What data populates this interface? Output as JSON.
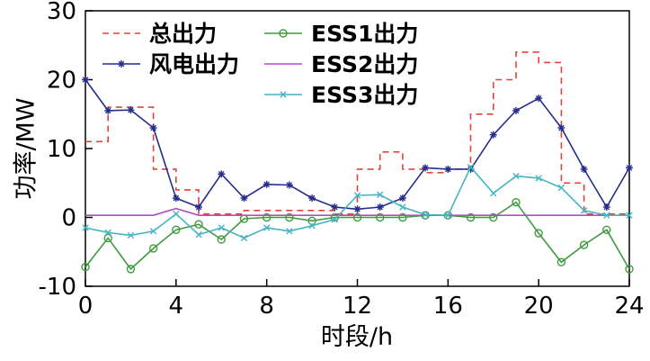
{
  "figure": {
    "background": "#ffffff"
  },
  "chart_data": {
    "type": "line",
    "title": "",
    "xlabel": "时段/h",
    "ylabel": "功率/MW",
    "xlim": [
      0,
      24
    ],
    "ylim": [
      -10,
      30
    ],
    "xticks": [
      0,
      4,
      8,
      12,
      16,
      20,
      24
    ],
    "yticks": [
      30,
      20,
      10,
      0,
      -10
    ],
    "grid": false,
    "legend_position": "inside-top-two-columns",
    "x": [
      0,
      1,
      2,
      3,
      4,
      5,
      6,
      7,
      8,
      9,
      10,
      11,
      12,
      13,
      14,
      15,
      16,
      17,
      18,
      19,
      20,
      21,
      22,
      23,
      24
    ],
    "series": [
      {
        "key": "total-output",
        "name": "总出力",
        "color": "#e0443a",
        "line": "dashed",
        "marker": "none",
        "step": true,
        "values": [
          11,
          16,
          16,
          7,
          4,
          0.5,
          0.5,
          1,
          1,
          1,
          1,
          0.5,
          7,
          9.5,
          7,
          6.5,
          7,
          15,
          20,
          24,
          22.5,
          5,
          0.5,
          0.5,
          0.5
        ]
      },
      {
        "key": "wind-output",
        "name": "风电出力",
        "color": "#272d8c",
        "line": "solid",
        "marker": "asterisk",
        "step": false,
        "values": [
          20,
          15.5,
          15.6,
          13,
          2.8,
          1.5,
          6.3,
          2.8,
          4.8,
          4.7,
          2.8,
          1.5,
          1.2,
          1.5,
          2.8,
          7.2,
          7,
          7,
          12,
          15.5,
          17.3,
          13,
          7,
          1.5,
          7.2
        ]
      },
      {
        "key": "ess1-output",
        "name": "ESS1出力",
        "color": "#3f9b3f",
        "line": "solid",
        "marker": "circle",
        "step": false,
        "values": [
          -7.2,
          -3,
          -7.5,
          -4.5,
          -1.8,
          -1,
          -3.2,
          -0.2,
          0,
          0,
          -0.5,
          0,
          0,
          0,
          0,
          0.3,
          0.3,
          0,
          0,
          2.2,
          -2.3,
          -6.5,
          -4,
          -1.8,
          -7.5
        ]
      },
      {
        "key": "ess2-output",
        "name": "ESS2出力",
        "color": "#b44bc8",
        "line": "solid",
        "marker": "none",
        "step": false,
        "values": [
          0.3,
          0.3,
          0.3,
          0.3,
          1.3,
          0.3,
          0.3,
          0.3,
          0.3,
          0.3,
          0.3,
          0.3,
          0.3,
          0.3,
          0.3,
          0.3,
          0.3,
          0.3,
          0.3,
          0.3,
          0.3,
          0.3,
          0.3,
          0.3,
          0.3
        ]
      },
      {
        "key": "ess3-output",
        "name": "ESS3出力",
        "color": "#45b5c4",
        "line": "solid",
        "marker": "x",
        "step": false,
        "values": [
          -1.5,
          -2.2,
          -2.6,
          -2,
          0.5,
          -2.5,
          -1.5,
          -3,
          -1.5,
          -2,
          -1.2,
          -0.3,
          3.2,
          3.3,
          1.5,
          0.4,
          0.3,
          7.3,
          3.5,
          6,
          5.7,
          4.3,
          1,
          0.3,
          0.3
        ]
      }
    ],
    "legend_columns": [
      [
        "总出力",
        "风电出力"
      ],
      [
        "ESS1出力",
        "ESS2出力",
        "ESS3出力"
      ]
    ]
  }
}
